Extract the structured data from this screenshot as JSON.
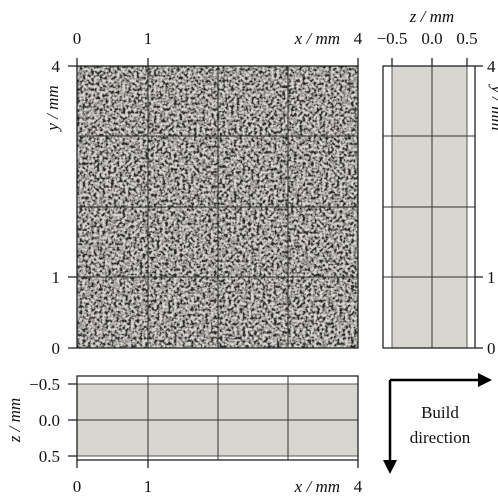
{
  "main": {
    "x_ticks": [
      "0",
      "1",
      "4"
    ],
    "x_label": "x / mm",
    "y_ticks": [
      "4",
      "1",
      "0"
    ],
    "y_label": "y / mm"
  },
  "side": {
    "z_label": "z / mm",
    "z_ticks": [
      "−0.5",
      "0.0",
      "0.5"
    ],
    "y_ticks": [
      "4",
      "1",
      "0"
    ],
    "y_label": "y / mm"
  },
  "bottom": {
    "z_label": "z / mm",
    "z_ticks": [
      "−0.5",
      "0.0",
      "0.5"
    ],
    "x_ticks": [
      "0",
      "1",
      "4"
    ],
    "x_label": "x / mm"
  },
  "annotation": [
    "Build",
    "direction"
  ]
}
